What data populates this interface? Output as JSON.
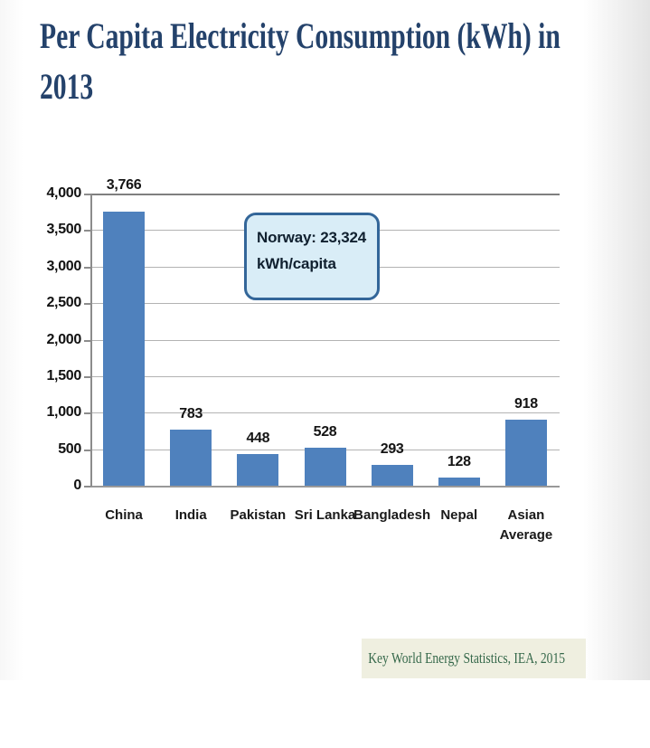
{
  "page": {
    "title_line1": "Per Capita Electricity Consumption (kWh) in",
    "title_line2": "2013",
    "title_color": "#24426B"
  },
  "annotation_box": {
    "line1": "Norway: 23,324",
    "line2": "kWh/capita",
    "fill_color": "#D9EDF7",
    "border_color": "#336699"
  },
  "source_box": {
    "text": "Key World Energy Statistics, IEA, 2015",
    "fill_color": "#EFEFE0",
    "text_color": "#35684A"
  },
  "chart_data": {
    "type": "bar",
    "title": "Per Capita Electricity Consumption (kWh) in 2013",
    "categories": [
      "China",
      "India",
      "Pakistan",
      "Sri Lanka",
      "Bangladesh",
      "Nepal",
      "Asian Average"
    ],
    "values": [
      3766,
      783,
      448,
      528,
      293,
      128,
      918
    ],
    "value_labels": [
      "3,766",
      "783",
      "448",
      "528",
      "293",
      "128",
      "918"
    ],
    "xlabel": "",
    "ylabel": "",
    "ylim": [
      0,
      4000
    ],
    "ytick_step": 500,
    "ytick_labels": [
      "0",
      "500",
      "1,000",
      "1,500",
      "2,000",
      "2,500",
      "3,000",
      "3,500",
      "4,000"
    ],
    "grid": true,
    "legend_position": "none",
    "bar_color": "#4F81BD",
    "annotation": "Norway: 23,324 kWh/capita",
    "source": "Key World Energy Statistics, IEA, 2015"
  }
}
